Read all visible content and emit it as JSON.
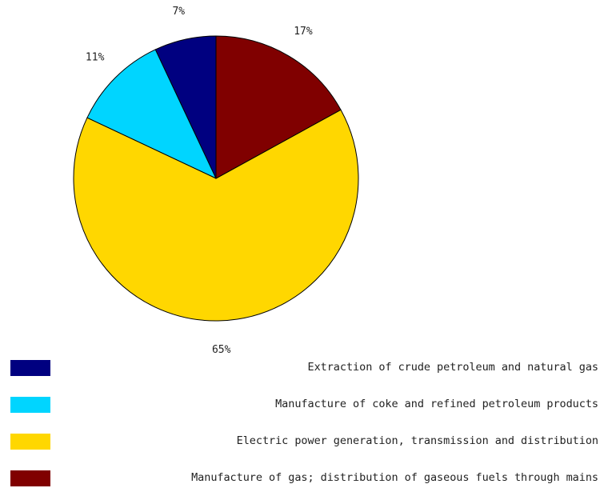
{
  "chart_data": {
    "type": "pie",
    "title": "",
    "slices": [
      {
        "label": "Extraction of crude petroleum and natural gas",
        "value": 7,
        "display": "7%",
        "color": "#000080"
      },
      {
        "label": "Manufacture of coke and refined petroleum products",
        "value": 11,
        "display": "11%",
        "color": "#00D5FF"
      },
      {
        "label": "Electric power generation, transmission and distribution",
        "value": 65,
        "display": "65%",
        "color": "#FFD700"
      },
      {
        "label": "Manufacture of gas; distribution of gaseous fuels through mains",
        "value": 17,
        "display": "17%",
        "color": "#800000"
      }
    ],
    "start_angle": "12 o'clock",
    "direction": "counter-clockwise",
    "legend_position": "bottom"
  },
  "legend": {
    "items": [
      {
        "label": "Extraction of crude petroleum and natural gas",
        "color": "#000080"
      },
      {
        "label": "Manufacture of coke and refined petroleum products",
        "color": "#00D5FF"
      },
      {
        "label": "Electric power generation, transmission and distribution",
        "color": "#FFD700"
      },
      {
        "label": "Manufacture of gas; distribution of gaseous fuels through mains",
        "color": "#800000"
      }
    ]
  }
}
